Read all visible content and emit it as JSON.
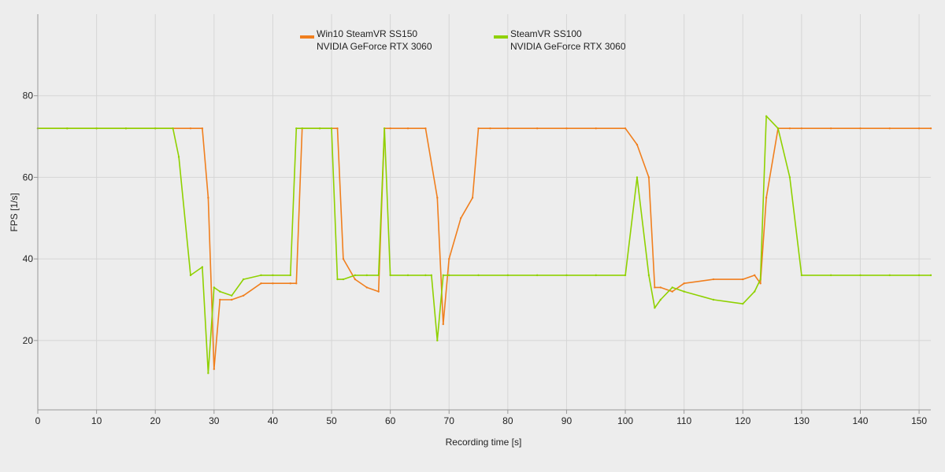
{
  "chart_data": {
    "type": "line",
    "title": "",
    "xlabel": "Recording time [s]",
    "ylabel": "FPS [1/s]",
    "xlim": [
      0,
      152
    ],
    "ylim": [
      3,
      100
    ],
    "x_ticks": [
      0,
      10,
      20,
      30,
      40,
      50,
      60,
      70,
      80,
      90,
      100,
      110,
      120,
      130,
      140,
      150
    ],
    "y_ticks": [
      20,
      40,
      60,
      80
    ],
    "grid": true,
    "legend_position": "top-center",
    "series": [
      {
        "name": "Win10 SteamVR SS150",
        "name_line2": "NVIDIA GeForce RTX 3060",
        "color": "#f07f1e",
        "x": [
          0,
          5,
          10,
          15,
          20,
          23,
          26,
          28,
          29,
          30,
          31,
          33,
          35,
          38,
          40,
          43,
          44,
          45,
          48,
          50,
          51,
          52,
          54,
          56,
          58,
          59,
          60,
          63,
          66,
          68,
          69,
          70,
          72,
          74,
          75,
          77,
          80,
          85,
          90,
          95,
          100,
          102,
          104,
          105,
          106,
          108,
          110,
          115,
          120,
          122,
          123,
          124,
          126,
          128,
          130,
          135,
          140,
          145,
          150,
          152
        ],
        "y": [
          72,
          72,
          72,
          72,
          72,
          72,
          72,
          72,
          55,
          13,
          30,
          30,
          31,
          34,
          34,
          34,
          34,
          72,
          72,
          72,
          72,
          40,
          35,
          33,
          32,
          72,
          72,
          72,
          72,
          55,
          24,
          40,
          50,
          55,
          72,
          72,
          72,
          72,
          72,
          72,
          72,
          68,
          60,
          33,
          33,
          32,
          34,
          35,
          35,
          36,
          34,
          55,
          72,
          72,
          72,
          72,
          72,
          72,
          72,
          72
        ]
      },
      {
        "name": "SteamVR SS100",
        "name_line2": "NVIDIA GeForce RTX 3060",
        "color": "#8fd100",
        "x": [
          0,
          5,
          10,
          15,
          20,
          23,
          24,
          26,
          28,
          29,
          30,
          31,
          33,
          35,
          38,
          40,
          43,
          44,
          45,
          48,
          50,
          51,
          52,
          54,
          56,
          58,
          59,
          60,
          63,
          66,
          67,
          68,
          69,
          70,
          75,
          80,
          85,
          90,
          95,
          100,
          102,
          104,
          105,
          106,
          108,
          110,
          115,
          120,
          122,
          123,
          124,
          126,
          128,
          130,
          135,
          140,
          145,
          150,
          152
        ],
        "y": [
          72,
          72,
          72,
          72,
          72,
          72,
          65,
          36,
          38,
          12,
          33,
          32,
          31,
          35,
          36,
          36,
          36,
          72,
          72,
          72,
          72,
          35,
          35,
          36,
          36,
          36,
          72,
          36,
          36,
          36,
          36,
          20,
          36,
          36,
          36,
          36,
          36,
          36,
          36,
          36,
          60,
          36,
          28,
          30,
          33,
          32,
          30,
          29,
          32,
          35,
          75,
          72,
          60,
          36,
          36,
          36,
          36,
          36,
          36
        ]
      }
    ]
  }
}
